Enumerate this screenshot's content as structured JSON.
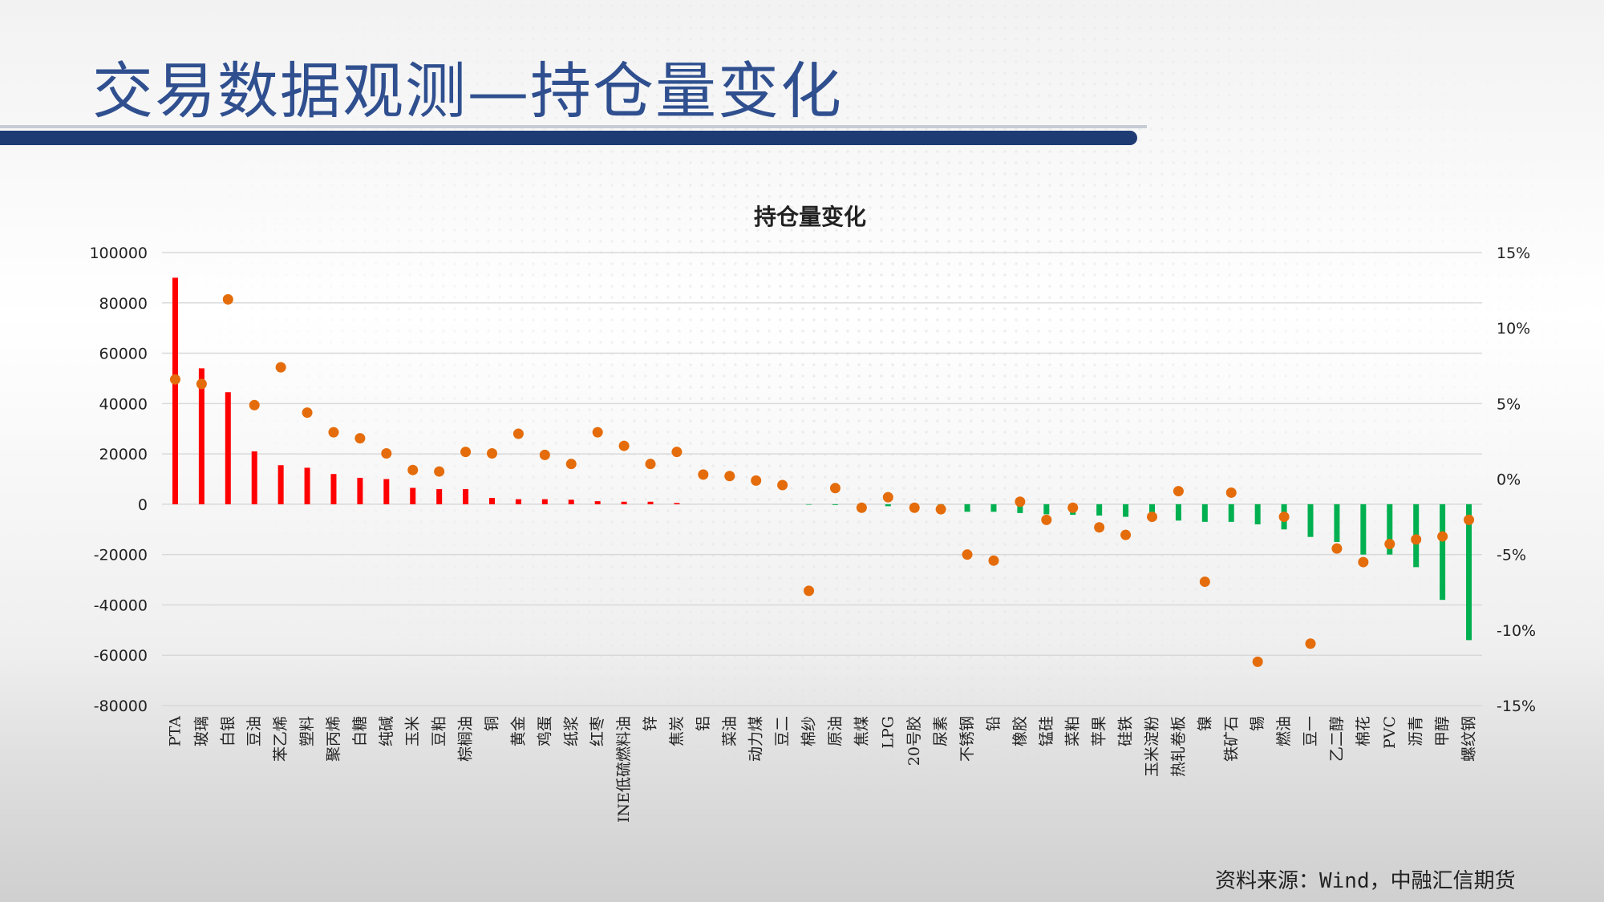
{
  "page": {
    "title": "交易数据观测—持仓量变化",
    "source": "资料来源：Wind，中融汇信期货"
  },
  "colors": {
    "increase": "#ff0000",
    "decrease": "#00b050",
    "pct_marker": "#e46c0a",
    "title": "#2f4f8f",
    "bar_band": "#1f3b73"
  },
  "chart_data": {
    "type": "bar",
    "title": "持仓量变化",
    "categories": [
      "PTA",
      "玻璃",
      "白银",
      "豆油",
      "苯乙烯",
      "塑料",
      "聚丙烯",
      "白糖",
      "纯碱",
      "玉米",
      "豆粕",
      "棕榈油",
      "铜",
      "黄金",
      "鸡蛋",
      "纸浆",
      "红枣",
      "INE低硫燃料油",
      "锌",
      "焦炭",
      "铝",
      "菜油",
      "动力煤",
      "豆二",
      "棉纱",
      "原油",
      "焦煤",
      "LPG",
      "20号胶",
      "尿素",
      "不锈钢",
      "铅",
      "橡胶",
      "锰硅",
      "菜粕",
      "苹果",
      "硅铁",
      "玉米淀粉",
      "热轧卷板",
      "镍",
      "铁矿石",
      "锡",
      "燃油",
      "豆一",
      "乙二醇",
      "棉花",
      "PVC",
      "沥青",
      "甲醇",
      "螺纹钢"
    ],
    "series": [
      {
        "axis": "left",
        "kind": "bar",
        "values": [
          90000,
          54000,
          44500,
          21000,
          15500,
          14500,
          12000,
          10500,
          10000,
          6500,
          6000,
          6000,
          2500,
          2000,
          2000,
          1800,
          1200,
          1000,
          1000,
          500,
          0,
          0,
          0,
          0,
          -200,
          -300,
          -500,
          -800,
          -1200,
          -1500,
          -3000,
          -3000,
          -3500,
          -4000,
          -4200,
          -4500,
          -5000,
          -5500,
          -6500,
          -7000,
          -7000,
          -8000,
          -10000,
          -13000,
          -15000,
          -20000,
          -20000,
          -25000,
          -38000,
          -54000
        ]
      },
      {
        "axis": "right",
        "kind": "scatter",
        "values": [
          6.6,
          6.3,
          11.9,
          4.9,
          7.4,
          4.4,
          3.1,
          2.7,
          1.7,
          0.6,
          0.5,
          1.8,
          1.7,
          3.0,
          1.6,
          1.0,
          3.1,
          2.2,
          1.0,
          1.8,
          0.3,
          0.2,
          -0.1,
          -0.4,
          -7.4,
          -0.6,
          -1.9,
          -1.2,
          -1.9,
          -2.0,
          -5.0,
          -5.4,
          -1.5,
          -2.7,
          -1.9,
          -3.2,
          -3.7,
          -2.5,
          -0.8,
          -6.8,
          -0.9,
          -12.1,
          -2.5,
          -10.9,
          -4.6,
          -5.5,
          -4.3,
          -4.0,
          -3.8,
          -2.7
        ]
      }
    ],
    "y_left": {
      "ticks": [
        "100000",
        "80000",
        "60000",
        "40000",
        "20000",
        "0",
        "-20000",
        "-40000",
        "-60000",
        "-80000"
      ],
      "ylim": [
        -80000,
        100000
      ]
    },
    "y_right": {
      "ticks": [
        "15%",
        "10%",
        "5%",
        "0%",
        "-5%",
        "-10%",
        "-15%"
      ],
      "ylim": [
        -15,
        15
      ]
    },
    "grid": true,
    "legend": "none"
  }
}
